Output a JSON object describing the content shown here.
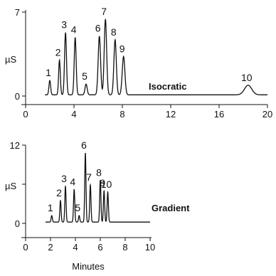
{
  "chart_data": [
    {
      "type": "line",
      "ylabel": "µS",
      "xlabel": "",
      "series_label": "Isocratic",
      "xlim": [
        0,
        20
      ],
      "ylim": [
        0,
        7
      ],
      "x_ticks": [
        0,
        4,
        8,
        12,
        16,
        20
      ],
      "y_ticks": [
        0,
        7
      ],
      "y_tick_labels": [
        "0",
        "7"
      ],
      "baseline": 0.1,
      "peaks": [
        {
          "label": "1",
          "x": 2.0,
          "height": 1.2,
          "width": 0.07
        },
        {
          "label": "2",
          "x": 2.8,
          "height": 2.9,
          "width": 0.07
        },
        {
          "label": "3",
          "x": 3.3,
          "height": 5.2,
          "width": 0.08
        },
        {
          "label": "4",
          "x": 4.1,
          "height": 4.8,
          "width": 0.08
        },
        {
          "label": "5",
          "x": 5.0,
          "height": 0.9,
          "width": 0.09
        },
        {
          "label": "6",
          "x": 6.1,
          "height": 4.9,
          "width": 0.1
        },
        {
          "label": "7",
          "x": 6.6,
          "height": 6.3,
          "width": 0.1
        },
        {
          "label": "8",
          "x": 7.4,
          "height": 4.6,
          "width": 0.1
        },
        {
          "label": "9",
          "x": 8.1,
          "height": 3.2,
          "width": 0.11
        },
        {
          "label": "10",
          "x": 18.4,
          "height": 0.8,
          "width": 0.3
        }
      ]
    },
    {
      "type": "line",
      "ylabel": "µS",
      "xlabel": "Minutes",
      "series_label": "Gradient",
      "xlim": [
        0,
        10
      ],
      "ylim": [
        0,
        12
      ],
      "x_ticks": [
        0,
        2,
        4,
        6,
        8,
        10
      ],
      "y_ticks": [
        0,
        6,
        12
      ],
      "y_tick_labels": [
        "0",
        "",
        "12"
      ],
      "baseline": 0.2,
      "peaks": [
        {
          "label": "1",
          "x": 2.1,
          "height": 1.0,
          "width": 0.05
        },
        {
          "label": "2",
          "x": 2.8,
          "height": 3.3,
          "width": 0.05
        },
        {
          "label": "3",
          "x": 3.2,
          "height": 5.5,
          "width": 0.05
        },
        {
          "label": "4",
          "x": 3.9,
          "height": 5.0,
          "width": 0.05
        },
        {
          "label": "5",
          "x": 4.3,
          "height": 1.0,
          "width": 0.05
        },
        {
          "label": "6",
          "x": 4.8,
          "height": 10.6,
          "width": 0.05
        },
        {
          "label": "7",
          "x": 5.2,
          "height": 5.7,
          "width": 0.05
        },
        {
          "label": "8",
          "x": 6.0,
          "height": 6.4,
          "width": 0.05
        },
        {
          "label": "9",
          "x": 6.3,
          "height": 4.8,
          "width": 0.05
        },
        {
          "label": "10",
          "x": 6.6,
          "height": 4.6,
          "width": 0.05
        }
      ]
    }
  ]
}
